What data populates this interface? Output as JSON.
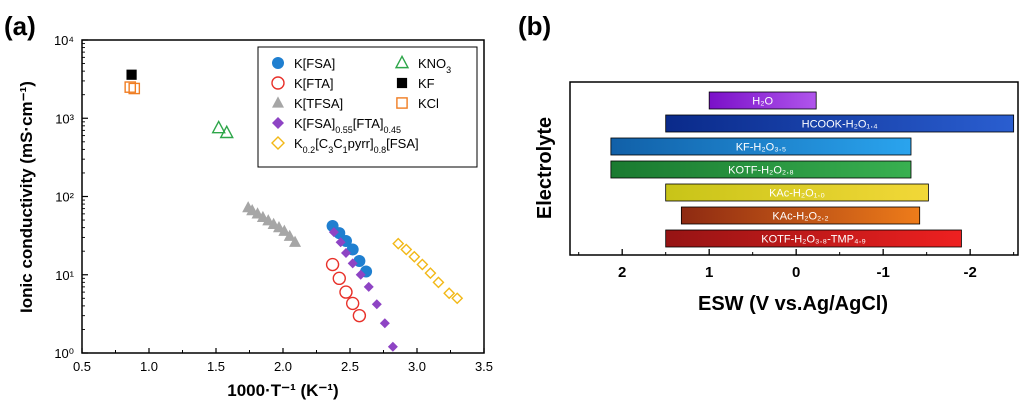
{
  "chart_data": [
    {
      "panel": "(a)",
      "type": "scatter",
      "xlabel": "1000·T⁻¹ (K⁻¹)",
      "ylabel": "Ionic conductivity (mS·cm⁻¹)",
      "xlim": [
        0.5,
        3.5
      ],
      "ylim": [
        1,
        10000
      ],
      "yscale": "log",
      "x_ticks": [
        "0.5",
        "1.0",
        "1.5",
        "2.0",
        "2.5",
        "3.0",
        "3.5"
      ],
      "y_ticks": [
        "10⁰",
        "10¹",
        "10²",
        "10³",
        "10⁴"
      ],
      "legend_position": "top-right",
      "series": [
        {
          "name": "K[FSA]",
          "marker": "filled-circle",
          "color": "#1f7fd0",
          "points": [
            [
              2.37,
              42
            ],
            [
              2.42,
              34
            ],
            [
              2.47,
              27
            ],
            [
              2.52,
              21
            ],
            [
              2.57,
              15
            ],
            [
              2.62,
              11
            ]
          ]
        },
        {
          "name": "K[FTA]",
          "marker": "open-circle",
          "color": "#e8312a",
          "points": [
            [
              2.37,
              13.5
            ],
            [
              2.42,
              9
            ],
            [
              2.47,
              6
            ],
            [
              2.52,
              4.3
            ],
            [
              2.57,
              3.0
            ]
          ]
        },
        {
          "name": "K[TFSA]",
          "marker": "filled-triangle",
          "color": "#a6a6a6",
          "points": [
            [
              1.74,
              72
            ],
            [
              1.77,
              66
            ],
            [
              1.81,
              60
            ],
            [
              1.85,
              54
            ],
            [
              1.89,
              49
            ],
            [
              1.93,
              44
            ],
            [
              1.97,
              40
            ],
            [
              2.01,
              36
            ],
            [
              2.05,
              31
            ],
            [
              2.09,
              26
            ]
          ]
        },
        {
          "name": "K[FSA]0.55[FTA]0.45",
          "marker": "filled-diamond",
          "color": "#8e44c4",
          "points": [
            [
              2.38,
              35
            ],
            [
              2.43,
              26
            ],
            [
              2.47,
              19
            ],
            [
              2.52,
              14
            ],
            [
              2.58,
              10
            ],
            [
              2.64,
              7
            ],
            [
              2.7,
              4.2
            ],
            [
              2.76,
              2.4
            ],
            [
              2.82,
              1.2
            ]
          ]
        },
        {
          "name": "K0.2[C3C1pyrr]0.8[FSA]",
          "marker": "open-diamond",
          "color": "#f2b817",
          "points": [
            [
              2.86,
              25
            ],
            [
              2.92,
              21
            ],
            [
              2.98,
              17
            ],
            [
              3.04,
              13.5
            ],
            [
              3.1,
              10.5
            ],
            [
              3.16,
              8
            ],
            [
              3.24,
              5.8
            ],
            [
              3.3,
              5
            ]
          ]
        },
        {
          "name": "KNO3",
          "marker": "open-triangle",
          "color": "#2ea64a",
          "points": [
            [
              1.52,
              750
            ],
            [
              1.58,
              650
            ]
          ]
        },
        {
          "name": "KF",
          "marker": "filled-square",
          "color": "#000000",
          "points": [
            [
              0.87,
              3600
            ]
          ]
        },
        {
          "name": "KCl",
          "marker": "open-square",
          "color": "#f07d22",
          "points": [
            [
              0.86,
              2500
            ],
            [
              0.89,
              2400
            ]
          ]
        }
      ],
      "legend": [
        {
          "marker": "filled-circle",
          "color": "#1f7fd0",
          "main": "K[FSA]",
          "parts": [
            [
              "K[FSA]",
              ""
            ]
          ]
        },
        {
          "marker": "open-triangle",
          "color": "#2ea64a",
          "main": "KNO3",
          "parts": [
            [
              "KNO",
              ""
            ],
            [
              "3",
              "sub"
            ]
          ]
        },
        {
          "marker": "open-circle",
          "color": "#e8312a",
          "main": "K[FTA]",
          "parts": [
            [
              "K[FTA]",
              ""
            ]
          ]
        },
        {
          "marker": "filled-square",
          "color": "#000000",
          "main": "KF",
          "parts": [
            [
              "KF",
              ""
            ]
          ]
        },
        {
          "marker": "filled-triangle",
          "color": "#a6a6a6",
          "main": "K[TFSA]",
          "parts": [
            [
              "K[TFSA]",
              ""
            ]
          ]
        },
        {
          "marker": "open-square",
          "color": "#f07d22",
          "main": "KCl",
          "parts": [
            [
              "KCl",
              ""
            ]
          ]
        },
        {
          "marker": "filled-diamond",
          "color": "#8e44c4",
          "main": "K[FSA]0.55[FTA]0.45",
          "parts": [
            [
              "K[FSA]",
              ""
            ],
            [
              "0.55",
              "sub"
            ],
            [
              "[FTA]",
              ""
            ],
            [
              "0.45",
              "sub"
            ]
          ]
        },
        {
          "marker": "open-diamond",
          "color": "#f2b817",
          "main": "K0.2[C3C1pyrr]0.8[FSA]",
          "parts": [
            [
              "K",
              ""
            ],
            [
              "0.2",
              "sub"
            ],
            [
              "[C",
              ""
            ],
            [
              "3",
              "sub"
            ],
            [
              "C",
              ""
            ],
            [
              "1",
              "sub"
            ],
            [
              "pyrr]",
              ""
            ],
            [
              "0.8",
              "sub"
            ],
            [
              "[FSA]",
              ""
            ]
          ]
        }
      ]
    },
    {
      "panel": "(b)",
      "type": "bar",
      "orientation": "horizontal-range",
      "xlabel": "ESW (V vs.Ag/AgCl)",
      "ylabel": "Electrolyte",
      "xlim": [
        2.5,
        -2.5
      ],
      "x_ticks": [
        "2",
        "1",
        "0",
        "-1",
        "-2"
      ],
      "bars": [
        {
          "label": "H₂O",
          "from": 1.0,
          "to": -0.23,
          "colors": [
            "#7a10c8",
            "#b055ec"
          ]
        },
        {
          "label": "HCOOK-H₂O₁.₄",
          "from": 1.5,
          "to": -2.5,
          "colors": [
            "#0a2a8a",
            "#2a5ed0"
          ]
        },
        {
          "label": "KF-H₂O₃.₅",
          "from": 2.13,
          "to": -1.32,
          "colors": [
            "#1160a8",
            "#2aa4ee"
          ]
        },
        {
          "label": "KOTF-H₂O₂.₈",
          "from": 2.13,
          "to": -1.32,
          "colors": [
            "#1a7a30",
            "#38b050"
          ]
        },
        {
          "label": "KAc-H₂O₁.₀",
          "from": 1.5,
          "to": -1.52,
          "colors": [
            "#c8c418",
            "#f2d838"
          ]
        },
        {
          "label": "KAc-H₂O₂.₂",
          "from": 1.32,
          "to": -1.42,
          "colors": [
            "#8e2a12",
            "#ee7c1a"
          ]
        },
        {
          "label": "KOTF-H₂O₃.₈-TMP₄.₉",
          "from": 1.5,
          "to": -1.9,
          "colors": [
            "#961414",
            "#ee2020"
          ]
        }
      ]
    }
  ]
}
